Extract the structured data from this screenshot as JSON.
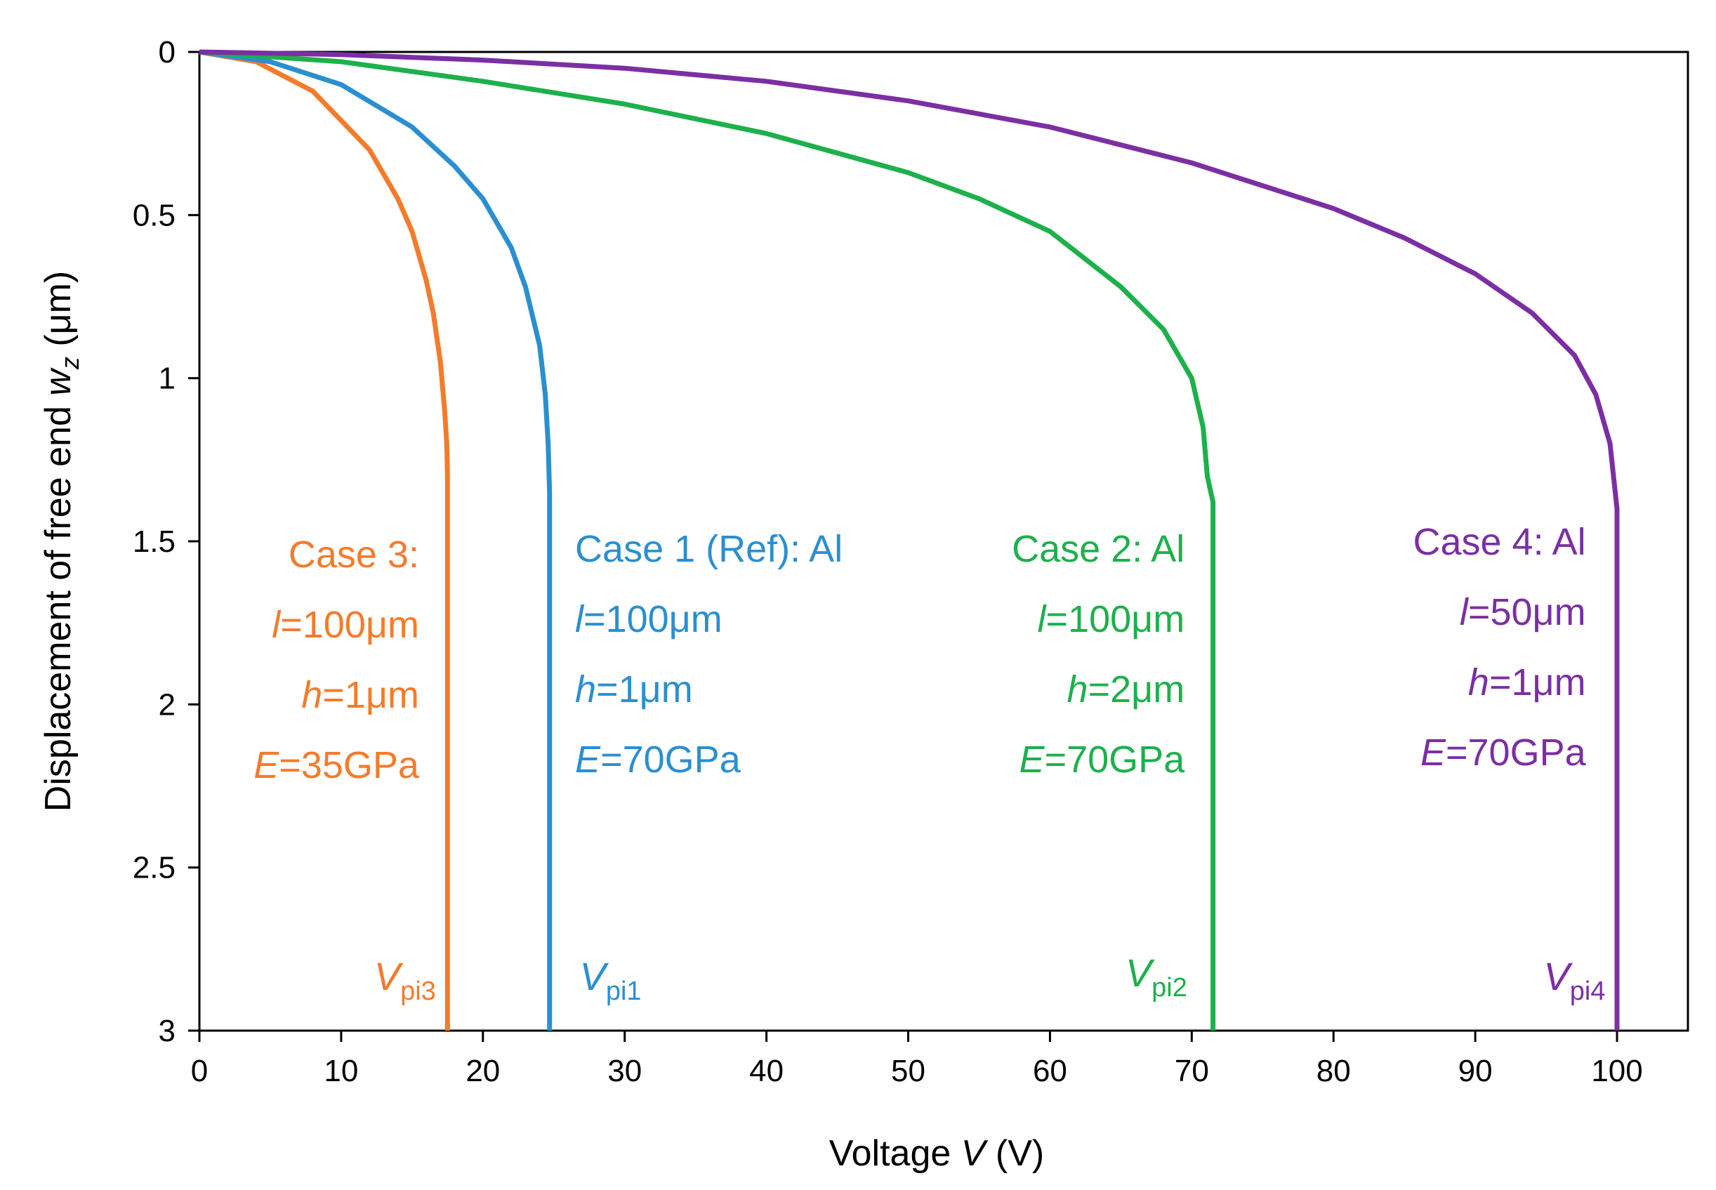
{
  "chart_data": {
    "type": "line",
    "xlabel": {
      "text": "Voltage ",
      "var": "V",
      "unit": " (V)"
    },
    "ylabel": {
      "text": "Displacement of free end ",
      "var": "w",
      "sub": "z",
      "unit": " (μm)"
    },
    "xlim": [
      0,
      105
    ],
    "ylim": [
      0,
      3
    ],
    "y_inverted": true,
    "grid": false,
    "xticks": [
      0,
      10,
      20,
      30,
      40,
      50,
      60,
      70,
      80,
      90,
      100
    ],
    "yticks": [
      0,
      0.5,
      1,
      1.5,
      2,
      2.5,
      3
    ],
    "ytick_labels": [
      "0",
      "0.5",
      "1",
      "1.5",
      "2",
      "2.5",
      "3"
    ],
    "series": [
      {
        "id": "case3",
        "color": "#F47B2B",
        "pull_in_voltage": 17.5,
        "pull_in_label": {
          "var": "V",
          "sub": "pi3"
        },
        "annotation": [
          {
            "parts": [
              {
                "t": "Case 3:"
              }
            ]
          },
          {
            "parts": [
              {
                "t": "l",
                "i": true
              },
              {
                "t": "=100μm"
              }
            ]
          },
          {
            "parts": [
              {
                "t": "h",
                "i": true
              },
              {
                "t": "=1μm"
              }
            ]
          },
          {
            "parts": [
              {
                "t": "E",
                "i": true
              },
              {
                "t": "=35GPa"
              }
            ]
          }
        ],
        "x": [
          0,
          4,
          8,
          12,
          14,
          15,
          16,
          16.5,
          17,
          17.3,
          17.45,
          17.5,
          17.5
        ],
        "y": [
          0,
          0.03,
          0.12,
          0.3,
          0.45,
          0.55,
          0.7,
          0.8,
          0.95,
          1.1,
          1.2,
          1.3,
          3.0
        ]
      },
      {
        "id": "case1",
        "color": "#2A8FD0",
        "pull_in_voltage": 24.7,
        "pull_in_label": {
          "var": "V",
          "sub": "pi1"
        },
        "annotation": [
          {
            "parts": [
              {
                "t": "Case 1 (Ref): Al"
              }
            ]
          },
          {
            "parts": [
              {
                "t": "l",
                "i": true
              },
              {
                "t": "=100μm"
              }
            ]
          },
          {
            "parts": [
              {
                "t": "h",
                "i": true
              },
              {
                "t": "=1μm"
              }
            ]
          },
          {
            "parts": [
              {
                "t": "E",
                "i": true
              },
              {
                "t": "=70GPa"
              }
            ]
          }
        ],
        "x": [
          0,
          5,
          10,
          15,
          18,
          20,
          22,
          23,
          24,
          24.4,
          24.6,
          24.7,
          24.7
        ],
        "y": [
          0,
          0.03,
          0.1,
          0.23,
          0.35,
          0.45,
          0.6,
          0.72,
          0.9,
          1.05,
          1.2,
          1.35,
          3.0
        ]
      },
      {
        "id": "case2",
        "color": "#1DB04B",
        "pull_in_voltage": 71.5,
        "pull_in_label": {
          "var": "V",
          "sub": "pi2"
        },
        "annotation": [
          {
            "parts": [
              {
                "t": "Case 2: Al"
              }
            ]
          },
          {
            "parts": [
              {
                "t": "l",
                "i": true
              },
              {
                "t": "=100μm"
              }
            ]
          },
          {
            "parts": [
              {
                "t": "h",
                "i": true
              },
              {
                "t": "=2μm"
              }
            ]
          },
          {
            "parts": [
              {
                "t": "E",
                "i": true
              },
              {
                "t": "=70GPa"
              }
            ]
          }
        ],
        "x": [
          0,
          10,
          20,
          30,
          40,
          50,
          55,
          60,
          65,
          68,
          70,
          70.8,
          71.1,
          71.5,
          71.5
        ],
        "y": [
          0,
          0.03,
          0.09,
          0.16,
          0.25,
          0.37,
          0.45,
          0.55,
          0.72,
          0.85,
          1.0,
          1.15,
          1.3,
          1.38,
          3.0
        ]
      },
      {
        "id": "case4",
        "color": "#7B2FA3",
        "pull_in_voltage": 100,
        "pull_in_label": {
          "var": "V",
          "sub": "pi4"
        },
        "annotation": [
          {
            "parts": [
              {
                "t": "Case 4: Al"
              }
            ]
          },
          {
            "parts": [
              {
                "t": "l",
                "i": true
              },
              {
                "t": "=50μm"
              }
            ]
          },
          {
            "parts": [
              {
                "t": "h",
                "i": true
              },
              {
                "t": "=1μm"
              }
            ]
          },
          {
            "parts": [
              {
                "t": "E",
                "i": true
              },
              {
                "t": "=70GPa"
              }
            ]
          }
        ],
        "x": [
          0,
          10,
          20,
          30,
          40,
          50,
          60,
          70,
          80,
          85,
          90,
          94,
          97,
          98.5,
          99.5,
          100,
          100
        ],
        "y": [
          0,
          0.008,
          0.025,
          0.05,
          0.09,
          0.15,
          0.23,
          0.34,
          0.48,
          0.57,
          0.68,
          0.8,
          0.93,
          1.05,
          1.2,
          1.4,
          3.0
        ]
      }
    ]
  }
}
